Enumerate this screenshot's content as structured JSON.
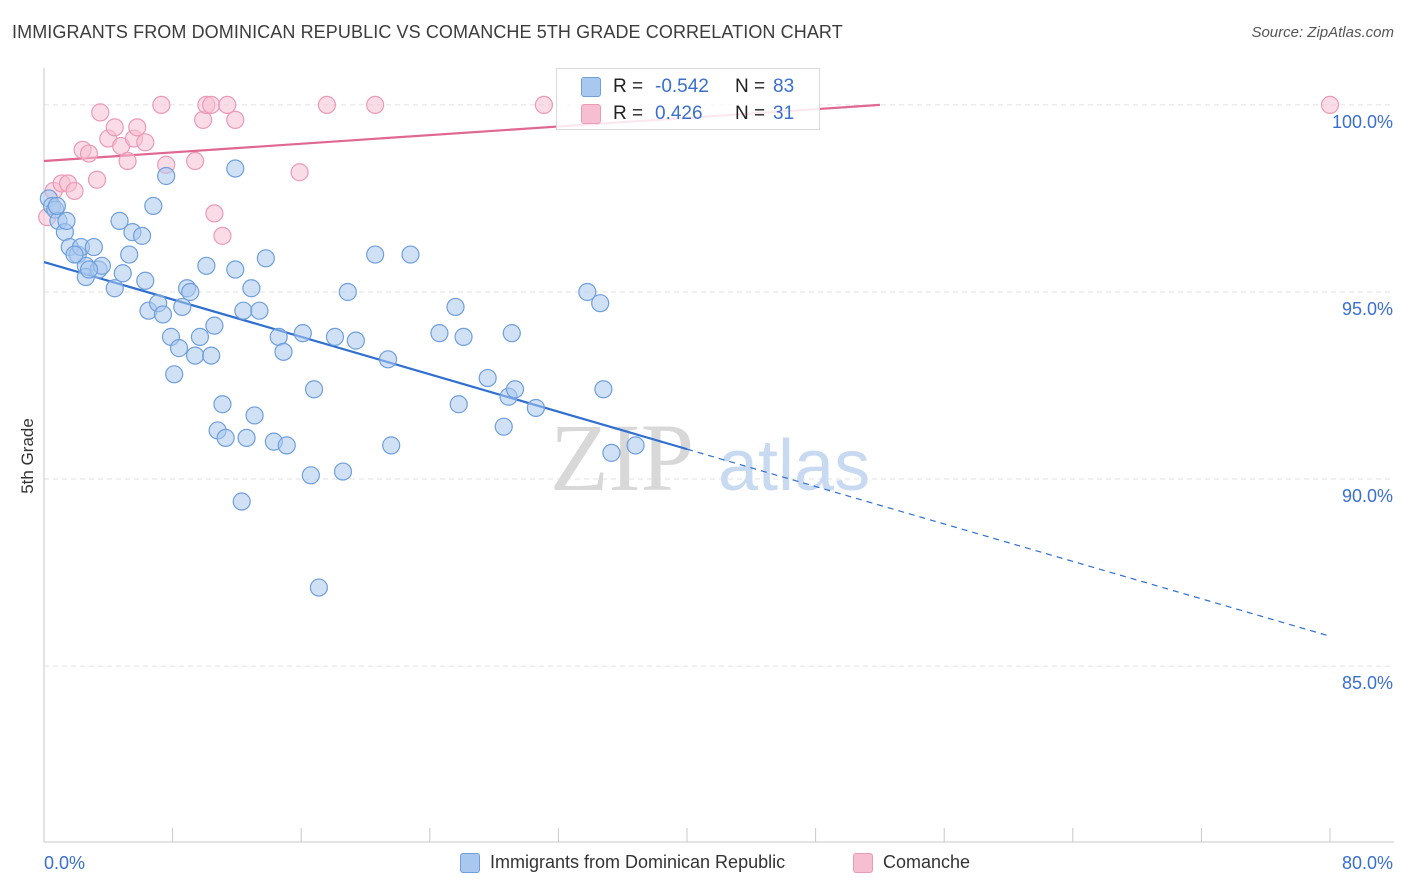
{
  "title": "IMMIGRANTS FROM DOMINICAN REPUBLIC VS COMANCHE 5TH GRADE CORRELATION CHART",
  "source": "Source: ZipAtlas.com",
  "watermark": {
    "zip": "ZIP",
    "atlas": "atlas"
  },
  "colors": {
    "blue_fill": "#a9c8ef",
    "blue_stroke": "#6f9fdc",
    "blue_line": "#2f6fcf",
    "pink_fill": "#f6bfd1",
    "pink_stroke": "#ec9ab6",
    "pink_line": "#e0678f",
    "axis_text": "#3a6fcf"
  },
  "legend_box": {
    "rows": [
      {
        "r_label": "R =",
        "r_value": "-0.542",
        "n_label": "N =",
        "n_value": "83"
      },
      {
        "r_label": "R =",
        "r_value": "0.426",
        "n_label": "N =",
        "n_value": "31"
      }
    ]
  },
  "bottom_legend": [
    "Immigrants from Dominican Republic",
    "Comanche"
  ],
  "chart_data": {
    "type": "scatter",
    "title": "IMMIGRANTS FROM DOMINICAN REPUBLIC VS COMANCHE 5TH GRADE CORRELATION CHART",
    "xlabel": "",
    "ylabel": "5th Grade",
    "xlim": [
      0,
      80
    ],
    "ylim": [
      80.3,
      101.2
    ],
    "x_tick_labels": [
      "0.0%",
      "80.0%"
    ],
    "y_ticks": [
      100,
      95,
      90,
      85
    ],
    "y_tick_labels": [
      "100.0%",
      "95.0%",
      "90.0%",
      "85.0%"
    ],
    "grid": true,
    "legend_position": "bottom",
    "series": [
      {
        "name": "Immigrants from Dominican Republic",
        "color": "#a9c8ef",
        "trend": {
          "x": [
            0.0,
            40.0
          ],
          "y": [
            95.8,
            90.8
          ],
          "dashed_to": [
            80.0,
            85.8
          ]
        },
        "points": [
          [
            0.3,
            97.5
          ],
          [
            0.5,
            97.3
          ],
          [
            0.7,
            97.2
          ],
          [
            0.9,
            96.9
          ],
          [
            1.3,
            96.6
          ],
          [
            1.4,
            96.9
          ],
          [
            1.6,
            96.2
          ],
          [
            2.1,
            96.0
          ],
          [
            2.3,
            96.2
          ],
          [
            2.6,
            95.7
          ],
          [
            2.6,
            95.4
          ],
          [
            3.1,
            96.2
          ],
          [
            3.4,
            95.6
          ],
          [
            3.6,
            95.7
          ],
          [
            4.4,
            95.1
          ],
          [
            4.7,
            96.9
          ],
          [
            4.9,
            95.5
          ],
          [
            5.3,
            96.0
          ],
          [
            5.5,
            96.6
          ],
          [
            6.1,
            96.5
          ],
          [
            6.3,
            95.3
          ],
          [
            6.5,
            94.5
          ],
          [
            6.8,
            97.3
          ],
          [
            7.1,
            94.7
          ],
          [
            7.4,
            94.4
          ],
          [
            7.6,
            98.1
          ],
          [
            7.9,
            93.8
          ],
          [
            8.1,
            92.8
          ],
          [
            8.4,
            93.5
          ],
          [
            8.6,
            94.6
          ],
          [
            8.9,
            95.1
          ],
          [
            9.1,
            95.0
          ],
          [
            9.4,
            93.3
          ],
          [
            9.7,
            93.8
          ],
          [
            10.1,
            95.7
          ],
          [
            10.4,
            93.3
          ],
          [
            10.6,
            94.1
          ],
          [
            10.8,
            91.3
          ],
          [
            11.1,
            92.0
          ],
          [
            11.3,
            91.1
          ],
          [
            11.9,
            98.3
          ],
          [
            11.9,
            95.6
          ],
          [
            12.3,
            89.4
          ],
          [
            12.4,
            94.5
          ],
          [
            12.6,
            91.1
          ],
          [
            12.9,
            95.1
          ],
          [
            13.1,
            91.7
          ],
          [
            13.4,
            94.5
          ],
          [
            13.8,
            95.9
          ],
          [
            14.3,
            91.0
          ],
          [
            14.6,
            93.8
          ],
          [
            14.9,
            93.4
          ],
          [
            15.1,
            90.9
          ],
          [
            16.1,
            93.9
          ],
          [
            16.6,
            90.1
          ],
          [
            16.8,
            92.4
          ],
          [
            17.1,
            87.1
          ],
          [
            18.1,
            93.8
          ],
          [
            18.6,
            90.2
          ],
          [
            18.9,
            95.0
          ],
          [
            19.4,
            93.7
          ],
          [
            20.6,
            96.0
          ],
          [
            21.4,
            93.2
          ],
          [
            21.6,
            90.9
          ],
          [
            22.8,
            96.0
          ],
          [
            24.6,
            93.9
          ],
          [
            25.6,
            94.6
          ],
          [
            25.8,
            92.0
          ],
          [
            26.1,
            93.8
          ],
          [
            27.6,
            92.7
          ],
          [
            28.6,
            91.4
          ],
          [
            28.9,
            92.2
          ],
          [
            29.1,
            93.9
          ],
          [
            29.3,
            92.4
          ],
          [
            30.6,
            91.9
          ],
          [
            33.8,
            95.0
          ],
          [
            34.6,
            94.7
          ],
          [
            34.8,
            92.4
          ],
          [
            35.3,
            90.7
          ],
          [
            36.8,
            90.9
          ],
          [
            0.8,
            97.3
          ],
          [
            1.9,
            96.0
          ],
          [
            2.8,
            95.6
          ]
        ]
      },
      {
        "name": "Comanche",
        "color": "#f6bfd1",
        "trend": {
          "x": [
            0.0,
            52.0
          ],
          "y": [
            98.5,
            100.0
          ]
        },
        "points": [
          [
            0.2,
            97.0
          ],
          [
            0.6,
            97.7
          ],
          [
            1.1,
            97.9
          ],
          [
            1.5,
            97.9
          ],
          [
            1.9,
            97.7
          ],
          [
            2.4,
            98.8
          ],
          [
            2.8,
            98.7
          ],
          [
            3.3,
            98.0
          ],
          [
            3.5,
            99.8
          ],
          [
            4.0,
            99.1
          ],
          [
            4.4,
            99.4
          ],
          [
            4.8,
            98.9
          ],
          [
            5.2,
            98.5
          ],
          [
            5.6,
            99.1
          ],
          [
            5.8,
            99.4
          ],
          [
            6.3,
            99.0
          ],
          [
            7.3,
            100.0
          ],
          [
            7.6,
            98.4
          ],
          [
            9.4,
            98.5
          ],
          [
            9.9,
            99.6
          ],
          [
            10.1,
            100.0
          ],
          [
            10.4,
            100.0
          ],
          [
            10.6,
            97.1
          ],
          [
            11.1,
            96.5
          ],
          [
            11.4,
            100.0
          ],
          [
            11.9,
            99.6
          ],
          [
            15.9,
            98.2
          ],
          [
            17.6,
            100.0
          ],
          [
            20.6,
            100.0
          ],
          [
            31.1,
            100.0
          ],
          [
            80.0,
            100.0
          ]
        ]
      }
    ]
  }
}
